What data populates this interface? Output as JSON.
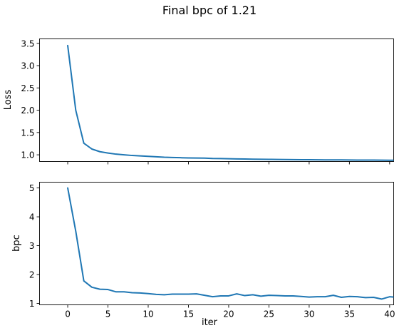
{
  "figure": {
    "title": "Final bpc of 1.21"
  },
  "chart_data": [
    {
      "type": "line",
      "panel": "top",
      "title": "",
      "xlabel": "",
      "ylabel": "Loss",
      "xlim": [
        -3.5,
        40.5
      ],
      "ylim": [
        0.85,
        3.6
      ],
      "x_ticks": [
        0,
        5,
        10,
        15,
        20,
        25,
        30,
        35,
        40
      ],
      "x_tick_labels_shown": false,
      "y_ticks": [
        1.0,
        1.5,
        2.0,
        2.5,
        3.0,
        3.5
      ],
      "y_tick_labels": [
        "1.0",
        "1.5",
        "2.0",
        "2.5",
        "3.0",
        "3.5"
      ],
      "grid": false,
      "series": [
        {
          "color": "#1f77b4",
          "x": [
            0,
            1,
            2,
            3,
            4,
            5,
            6,
            7,
            8,
            9,
            10,
            11,
            12,
            13,
            14,
            15,
            16,
            17,
            18,
            19,
            20,
            21,
            22,
            23,
            24,
            25,
            26,
            27,
            28,
            29,
            30,
            31,
            32,
            33,
            34,
            35,
            36,
            37,
            38,
            39,
            40,
            41
          ],
          "y": [
            3.45,
            2.0,
            1.26,
            1.13,
            1.07,
            1.04,
            1.015,
            1.0,
            0.985,
            0.975,
            0.965,
            0.955,
            0.945,
            0.94,
            0.935,
            0.93,
            0.928,
            0.925,
            0.918,
            0.915,
            0.912,
            0.908,
            0.905,
            0.903,
            0.9,
            0.898,
            0.896,
            0.894,
            0.892,
            0.89,
            0.889,
            0.888,
            0.887,
            0.886,
            0.885,
            0.884,
            0.883,
            0.882,
            0.881,
            0.88,
            0.879,
            0.878
          ]
        }
      ]
    },
    {
      "type": "line",
      "panel": "bottom",
      "title": "",
      "xlabel": "iter",
      "ylabel": "bpc",
      "xlim": [
        -3.5,
        40.5
      ],
      "ylim": [
        0.95,
        5.2
      ],
      "x_ticks": [
        0,
        5,
        10,
        15,
        20,
        25,
        30,
        35,
        40
      ],
      "x_tick_labels": [
        "0",
        "5",
        "10",
        "15",
        "20",
        "25",
        "30",
        "35",
        "40"
      ],
      "y_ticks": [
        1,
        2,
        3,
        4,
        5
      ],
      "y_tick_labels": [
        "1",
        "2",
        "3",
        "4",
        "5"
      ],
      "grid": false,
      "series": [
        {
          "color": "#1f77b4",
          "x": [
            0,
            1,
            2,
            3,
            4,
            5,
            6,
            7,
            8,
            9,
            10,
            11,
            12,
            13,
            14,
            15,
            16,
            17,
            18,
            19,
            20,
            21,
            22,
            23,
            24,
            25,
            26,
            27,
            28,
            29,
            30,
            31,
            32,
            33,
            34,
            35,
            36,
            37,
            38,
            39,
            40,
            41
          ],
          "y": [
            5.0,
            3.5,
            1.78,
            1.56,
            1.49,
            1.48,
            1.4,
            1.4,
            1.37,
            1.36,
            1.34,
            1.31,
            1.3,
            1.32,
            1.32,
            1.32,
            1.33,
            1.28,
            1.23,
            1.26,
            1.26,
            1.33,
            1.27,
            1.3,
            1.25,
            1.28,
            1.27,
            1.26,
            1.26,
            1.24,
            1.22,
            1.23,
            1.23,
            1.28,
            1.21,
            1.24,
            1.23,
            1.2,
            1.21,
            1.15,
            1.23,
            1.21
          ]
        }
      ]
    }
  ]
}
